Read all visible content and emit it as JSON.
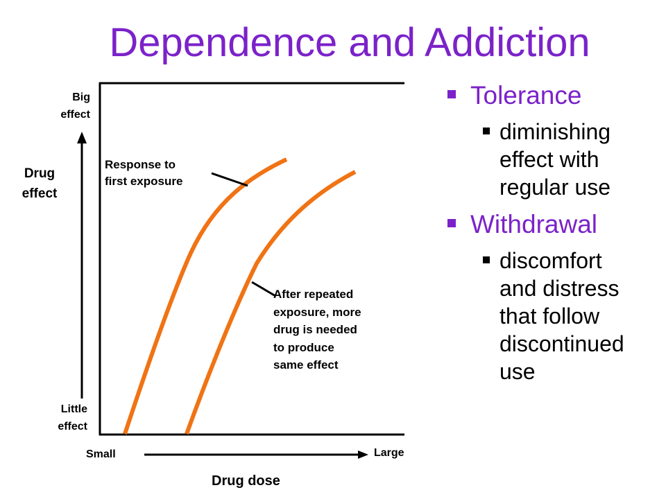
{
  "title": "Dependence and Addiction",
  "graph": {
    "y_axis_label_line1": "Drug",
    "y_axis_label_line2": "effect",
    "y_top_line1": "Big",
    "y_top_line2": "effect",
    "y_bottom_line1": "Little",
    "y_bottom_line2": "effect",
    "x_left": "Small",
    "x_right": "Large",
    "x_axis_label": "Drug dose",
    "curve_color": "#f07314",
    "first_exposure": {
      "line1": "Response to",
      "line2": "first exposure"
    },
    "repeated_exposure": {
      "line1": "After repeated",
      "line2": "exposure, more",
      "line3": "drug is needed",
      "line4": "to produce",
      "line5": "same effect"
    }
  },
  "bullets": [
    {
      "label": "Tolerance",
      "sub": [
        "diminishing",
        "effect with",
        "regular use"
      ]
    },
    {
      "label": "Withdrawal",
      "sub": [
        "discomfort",
        "and distress",
        "that follow",
        "discontinued",
        "use"
      ]
    }
  ],
  "colors": {
    "accent": "#7b22c9",
    "curve": "#f07314"
  }
}
